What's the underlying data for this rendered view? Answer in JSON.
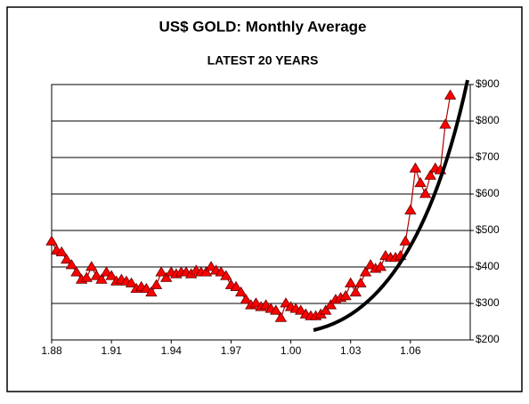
{
  "chart_data": {
    "type": "line",
    "title": "US$ GOLD: Monthly Average",
    "subtitle": "LATEST 20 YEARS",
    "x": [
      1988,
      1988.25,
      1988.5,
      1988.75,
      1989,
      1989.25,
      1989.5,
      1989.75,
      1990,
      1990.25,
      1990.5,
      1990.75,
      1991,
      1991.25,
      1991.5,
      1991.75,
      1992,
      1992.25,
      1992.5,
      1992.75,
      1993,
      1993.25,
      1993.5,
      1993.75,
      1994,
      1994.25,
      1994.5,
      1994.75,
      1995,
      1995.25,
      1995.5,
      1995.75,
      1996,
      1996.25,
      1996.5,
      1996.75,
      1997,
      1997.25,
      1997.5,
      1997.75,
      1998,
      1998.25,
      1998.5,
      1998.75,
      1999,
      1999.25,
      1999.5,
      1999.75,
      2000,
      2000.25,
      2000.5,
      2000.75,
      2001,
      2001.25,
      2001.5,
      2001.75,
      2002,
      2002.25,
      2002.5,
      2002.75,
      2003,
      2003.25,
      2003.5,
      2003.75,
      2004,
      2004.25,
      2004.5,
      2004.75,
      2005,
      2005.25,
      2005.5,
      2005.75,
      2006,
      2006.25,
      2006.5,
      2006.75,
      2007,
      2007.25,
      2007.5,
      2007.75,
      2008
    ],
    "values": [
      470,
      445,
      440,
      420,
      405,
      385,
      365,
      370,
      400,
      375,
      365,
      385,
      375,
      360,
      365,
      360,
      355,
      340,
      345,
      340,
      330,
      350,
      385,
      370,
      385,
      380,
      385,
      385,
      380,
      390,
      385,
      385,
      400,
      390,
      385,
      375,
      350,
      345,
      330,
      310,
      295,
      300,
      290,
      295,
      285,
      280,
      260,
      300,
      290,
      285,
      280,
      270,
      265,
      265,
      270,
      280,
      295,
      310,
      315,
      320,
      355,
      330,
      355,
      385,
      405,
      395,
      400,
      430,
      425,
      425,
      430,
      470,
      555,
      670,
      630,
      600,
      650,
      670,
      665,
      790,
      870
    ],
    "color": "#ff0000",
    "line_color": "#b00000",
    "xlim": [
      1988,
      2009
    ],
    "xticks": [
      {
        "value": 1988,
        "label": "1.88"
      },
      {
        "value": 1991,
        "label": "1.91"
      },
      {
        "value": 1994,
        "label": "1.94"
      },
      {
        "value": 1997,
        "label": "1.97"
      },
      {
        "value": 2000,
        "label": "1.00"
      },
      {
        "value": 2003,
        "label": "1.03"
      },
      {
        "value": 2006,
        "label": "1.06"
      }
    ],
    "ylim": [
      200,
      900
    ],
    "yticks": [
      {
        "value": 200,
        "label": "$200"
      },
      {
        "value": 300,
        "label": "$300"
      },
      {
        "value": 400,
        "label": "$400"
      },
      {
        "value": 500,
        "label": "$500"
      },
      {
        "value": 600,
        "label": "$600"
      },
      {
        "value": 700,
        "label": "$700"
      },
      {
        "value": 800,
        "label": "$800"
      },
      {
        "value": 900,
        "label": "$900"
      }
    ],
    "grid": true
  }
}
